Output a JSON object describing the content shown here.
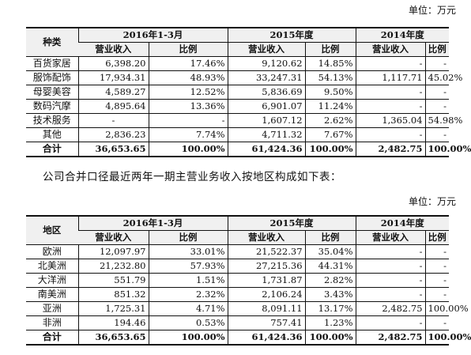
{
  "unit_label": "单位：万元",
  "table1": {
    "head": {
      "category": "种类",
      "period_2016": "2016年1-3月",
      "period_2015": "2015年度",
      "period_2014": "2014年度",
      "revenue": "营业收入",
      "ratio": "比例"
    },
    "rows": [
      {
        "name": "百货家居",
        "v1": "6,398.20",
        "r1": "17.46%",
        "v2": "9,120.62",
        "r2": "14.85%",
        "v3": "-",
        "r3": "-"
      },
      {
        "name": "服饰配饰",
        "v1": "17,934.31",
        "r1": "48.93%",
        "v2": "33,247.31",
        "r2": "54.13%",
        "v3": "1,117.71",
        "r3": "45.02%"
      },
      {
        "name": "母婴美容",
        "v1": "4,589.27",
        "r1": "12.52%",
        "v2": "5,836.69",
        "r2": "9.50%",
        "v3": "-",
        "r3": "-"
      },
      {
        "name": "数码汽摩",
        "v1": "4,895.64",
        "r1": "13.36%",
        "v2": "6,901.07",
        "r2": "11.24%",
        "v3": "-",
        "r3": "-"
      },
      {
        "name": "技术服务",
        "v1": "-",
        "r1": "-",
        "v2": "1,607.12",
        "r2": "2.62%",
        "v3": "1,365.04",
        "r3": "54.98%"
      },
      {
        "name": "其他",
        "v1": "2,836.23",
        "r1": "7.74%",
        "v2": "4,711.32",
        "r2": "7.67%",
        "v3": "-",
        "r3": "-"
      }
    ],
    "total": {
      "name": "合计",
      "v1": "36,653.65",
      "r1": "100.00%",
      "v2": "61,424.36",
      "r2": "100.00%",
      "v3": "2,482.75",
      "r3": "100.00%"
    }
  },
  "paragraph": "公司合并口径最近两年一期主营业务收入按地区构成如下表：",
  "table2": {
    "head": {
      "category": "地区",
      "period_2016": "2016年1-3月",
      "period_2015": "2015年度",
      "period_2014": "2014年度",
      "revenue": "营业收入",
      "ratio": "比例"
    },
    "rows": [
      {
        "name": "欧洲",
        "v1": "12,097.97",
        "r1": "33.01%",
        "v2": "21,522.37",
        "r2": "35.04%",
        "v3": "-",
        "r3": "-"
      },
      {
        "name": "北美洲",
        "v1": "21,232.80",
        "r1": "57.93%",
        "v2": "27,215.36",
        "r2": "44.31%",
        "v3": "-",
        "r3": "-"
      },
      {
        "name": "大洋洲",
        "v1": "551.79",
        "r1": "1.51%",
        "v2": "1,731.87",
        "r2": "2.82%",
        "v3": "-",
        "r3": "-"
      },
      {
        "name": "南美洲",
        "v1": "851.32",
        "r1": "2.32%",
        "v2": "2,106.24",
        "r2": "3.43%",
        "v3": "-",
        "r3": "-"
      },
      {
        "name": "亚洲",
        "v1": "1,725.31",
        "r1": "4.71%",
        "v2": "8,091.11",
        "r2": "13.17%",
        "v3": "2,482.75",
        "r3": "100.00%"
      },
      {
        "name": "非洲",
        "v1": "194.46",
        "r1": "0.53%",
        "v2": "757.41",
        "r2": "1.23%",
        "v3": "-",
        "r3": "-"
      }
    ],
    "total": {
      "name": "合计",
      "v1": "36,653.65",
      "r1": "100.00%",
      "v2": "61,424.36",
      "r2": "100.00%",
      "v3": "2,482.75",
      "r3": "100.00%"
    }
  }
}
